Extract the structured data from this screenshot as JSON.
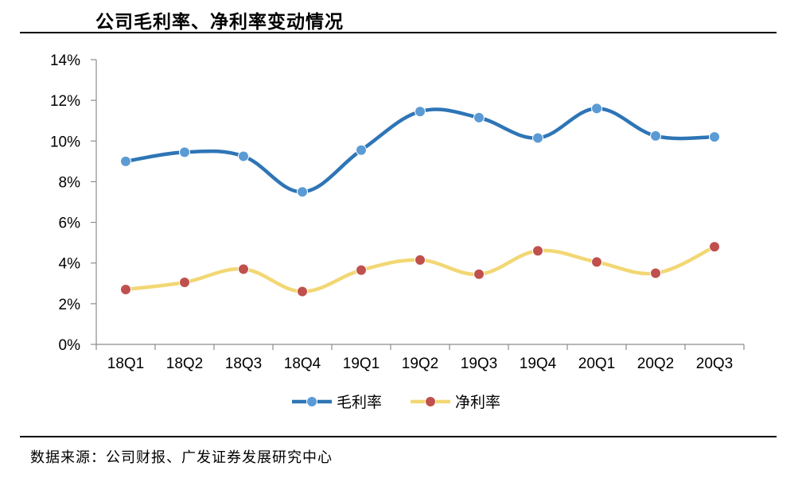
{
  "header": {
    "title": "公司毛利率、净利率变动情况"
  },
  "footer": {
    "source": "数据来源：公司财报、广发证券发展研究中心"
  },
  "chart_data": {
    "type": "line",
    "title": "公司毛利率、净利率变动情况",
    "xlabel": "",
    "ylabel": "",
    "categories": [
      "18Q1",
      "18Q2",
      "18Q3",
      "18Q4",
      "19Q1",
      "19Q2",
      "19Q3",
      "19Q4",
      "20Q1",
      "20Q2",
      "20Q3"
    ],
    "ylim": [
      0,
      14
    ],
    "yticks": [
      0,
      2,
      4,
      6,
      8,
      10,
      12,
      14
    ],
    "ytick_labels": [
      "0%",
      "2%",
      "4%",
      "6%",
      "8%",
      "10%",
      "12%",
      "14%"
    ],
    "grid": false,
    "smooth": true,
    "legend_position": "bottom",
    "series": [
      {
        "name": "毛利率",
        "color": "#2E75B6",
        "marker_color": "#5B9BD5",
        "values": [
          9.0,
          9.45,
          9.25,
          7.5,
          9.55,
          11.45,
          11.15,
          10.15,
          11.6,
          10.25,
          10.2
        ]
      },
      {
        "name": "净利率",
        "color": "#F2D774",
        "marker_color": "#C0504D",
        "values": [
          2.7,
          3.05,
          3.7,
          2.6,
          3.65,
          4.15,
          3.45,
          4.6,
          4.05,
          3.5,
          4.8
        ]
      }
    ]
  }
}
